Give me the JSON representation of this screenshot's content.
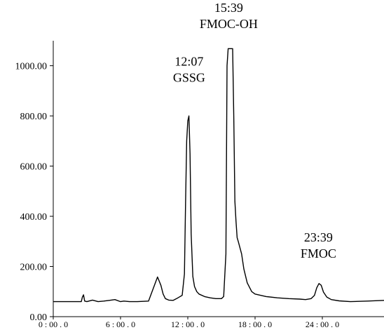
{
  "chart_data": {
    "type": "line",
    "title": "",
    "xlabel": "",
    "ylabel": "",
    "xlim": [
      0,
      29.5
    ],
    "ylim": [
      0,
      1150
    ],
    "grid": false,
    "y_ticks": [
      0,
      200,
      400,
      600,
      800,
      1000
    ],
    "y_tick_labels": [
      "0.00",
      "200.00",
      "400.00",
      "600.00",
      "800.00",
      "1000.00"
    ],
    "x_ticks": [
      0,
      6,
      12,
      18,
      24
    ],
    "x_tick_labels": [
      "0 : 00 . 0",
      "6 : 00 . 0",
      "12 : 00 . 0",
      "18 : 00 . 0",
      "24 : 00 . 0"
    ],
    "annotations": [
      {
        "time": "12:07",
        "name": "GSSG",
        "x": 12.12,
        "y": 1000
      },
      {
        "time": "15:39",
        "name": "FMOC-OH",
        "x": 15.65,
        "y": 1215
      },
      {
        "time": "23:39",
        "name": "FMOC",
        "x": 23.65,
        "y": 300
      }
    ],
    "series": [
      {
        "color": "#000000",
        "x": [
          0,
          1.5,
          2.5,
          2.6,
          2.7,
          2.8,
          3.0,
          3.5,
          4.0,
          4.5,
          5.0,
          5.5,
          6.0,
          6.3,
          6.8,
          7.5,
          8.5,
          9.3,
          9.6,
          9.8,
          10.0,
          10.3,
          10.7,
          11.0,
          11.5,
          11.7,
          11.8,
          11.9,
          12.0,
          12.1,
          12.2,
          12.3,
          12.45,
          12.6,
          12.8,
          13.0,
          13.5,
          14.0,
          14.5,
          15.0,
          15.2,
          15.4,
          15.5,
          15.6,
          15.7,
          15.8,
          16.0,
          16.1,
          16.2,
          16.3,
          16.4,
          16.5,
          16.8,
          17.0,
          17.3,
          17.7,
          18.0,
          19.0,
          20.0,
          21.0,
          22.0,
          22.5,
          23.0,
          23.3,
          23.5,
          23.7,
          23.9,
          24.1,
          24.4,
          24.8,
          25.5,
          26.5,
          28.0,
          29.5
        ],
        "y": [
          60,
          60,
          60,
          78,
          87,
          62,
          60,
          66,
          60,
          62,
          65,
          68,
          60,
          62,
          60,
          60,
          62,
          158,
          125,
          90,
          72,
          66,
          65,
          72,
          85,
          170,
          450,
          700,
          780,
          800,
          650,
          330,
          160,
          120,
          100,
          90,
          80,
          75,
          72,
          72,
          80,
          250,
          1000,
          1068,
          1068,
          1068,
          1068,
          800,
          460,
          380,
          315,
          300,
          250,
          190,
          135,
          100,
          90,
          80,
          75,
          72,
          70,
          68,
          72,
          85,
          115,
          132,
          125,
          98,
          78,
          68,
          63,
          60,
          62,
          65
        ]
      }
    ]
  }
}
